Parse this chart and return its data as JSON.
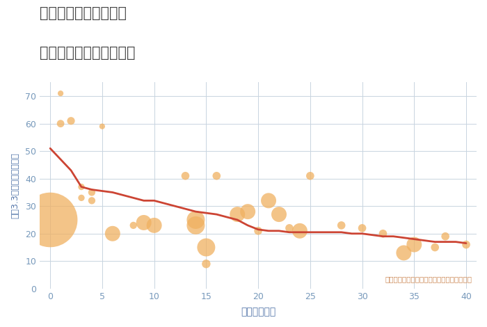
{
  "title_line1": "岐阜県関市西境松町の",
  "title_line2": "築年数別中古戸建て価格",
  "xlabel": "築年数（年）",
  "ylabel": "坪（3.3㎡）単価（万円）",
  "bg_color": "#ffffff",
  "plot_bg_color": "#ffffff",
  "grid_color": "#c8d4e0",
  "title_color": "#444444",
  "line_color": "#cc4433",
  "bubble_color": "#f0b060",
  "bubble_alpha": 0.75,
  "annotation_color": "#cc8855",
  "annotation_text": "円の大きさは、取引のあった物件面積を示す",
  "axis_label_color": "#5577aa",
  "tick_color": "#7799bb",
  "xlim": [
    -1,
    41
  ],
  "ylim": [
    0,
    75
  ],
  "xticks": [
    0,
    5,
    10,
    15,
    20,
    25,
    30,
    35,
    40
  ],
  "yticks": [
    0,
    10,
    20,
    30,
    40,
    50,
    60,
    70
  ],
  "scatter_x": [
    1,
    2,
    1,
    0,
    3,
    3,
    4,
    4,
    5,
    6,
    8,
    9,
    10,
    13,
    14,
    14,
    15,
    15,
    16,
    18,
    19,
    20,
    21,
    22,
    23,
    24,
    25,
    28,
    30,
    32,
    34,
    35,
    37,
    38,
    40
  ],
  "scatter_y": [
    71,
    61,
    60,
    25,
    37,
    33,
    35,
    32,
    59,
    20,
    23,
    24,
    23,
    41,
    25,
    23,
    9,
    15,
    41,
    27,
    28,
    21,
    32,
    27,
    22,
    21,
    41,
    23,
    22,
    20,
    13,
    16,
    15,
    19,
    16
  ],
  "scatter_size": [
    35,
    65,
    60,
    3200,
    45,
    45,
    55,
    55,
    35,
    250,
    55,
    250,
    250,
    70,
    350,
    350,
    80,
    350,
    70,
    250,
    250,
    70,
    250,
    250,
    70,
    250,
    70,
    70,
    70,
    70,
    250,
    250,
    70,
    70,
    70
  ],
  "line_x": [
    0,
    1,
    2,
    3,
    4,
    5,
    6,
    7,
    8,
    9,
    10,
    11,
    12,
    13,
    14,
    15,
    16,
    17,
    18,
    19,
    20,
    21,
    22,
    23,
    24,
    25,
    26,
    27,
    28,
    29,
    30,
    31,
    32,
    33,
    34,
    35,
    36,
    37,
    38,
    39,
    40
  ],
  "line_y": [
    51,
    47,
    43,
    37,
    36,
    35.5,
    35,
    34,
    33,
    32,
    32,
    31,
    30,
    29,
    28,
    27.5,
    27,
    26,
    25,
    23,
    21.5,
    21,
    21,
    20.5,
    20.5,
    20.5,
    20.5,
    20.5,
    20.5,
    20,
    20,
    19.5,
    19,
    19,
    18.5,
    18,
    17.5,
    17,
    17,
    17,
    16.5
  ]
}
